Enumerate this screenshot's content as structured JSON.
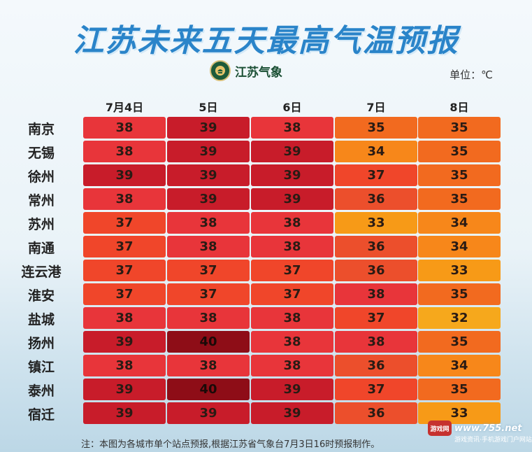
{
  "title": "江苏未来五天最高气温预报",
  "logo": {
    "text": "江苏气象",
    "icon": "weather-bureau-emblem-icon"
  },
  "unit": "单位：℃",
  "days": [
    "7月4日",
    "5日",
    "6日",
    "7日",
    "8日"
  ],
  "cities": [
    {
      "name": "南京",
      "temps": [
        38,
        39,
        38,
        35,
        35
      ]
    },
    {
      "name": "无锡",
      "temps": [
        38,
        39,
        39,
        34,
        35
      ]
    },
    {
      "name": "徐州",
      "temps": [
        39,
        39,
        39,
        37,
        35
      ]
    },
    {
      "name": "常州",
      "temps": [
        38,
        39,
        39,
        36,
        35
      ]
    },
    {
      "name": "苏州",
      "temps": [
        37,
        38,
        38,
        33,
        34
      ]
    },
    {
      "name": "南通",
      "temps": [
        37,
        38,
        38,
        36,
        34
      ]
    },
    {
      "name": "连云港",
      "temps": [
        37,
        37,
        37,
        36,
        33
      ]
    },
    {
      "name": "淮安",
      "temps": [
        37,
        37,
        37,
        38,
        35
      ]
    },
    {
      "name": "盐城",
      "temps": [
        38,
        38,
        38,
        37,
        32
      ]
    },
    {
      "name": "扬州",
      "temps": [
        39,
        40,
        38,
        38,
        35
      ]
    },
    {
      "name": "镇江",
      "temps": [
        38,
        38,
        38,
        36,
        34
      ]
    },
    {
      "name": "泰州",
      "temps": [
        39,
        40,
        39,
        37,
        35
      ]
    },
    {
      "name": "宿迁",
      "temps": [
        39,
        39,
        39,
        36,
        33
      ]
    }
  ],
  "temperature_colors": {
    "32": "#f6a81c",
    "33": "#f79a17",
    "34": "#f7871a",
    "35": "#f26a1f",
    "36": "#ec4f2c",
    "37": "#f0462a",
    "38": "#e8353a",
    "39": "#c81c2a",
    "40": "#8e0d17"
  },
  "footnote": "注：本图为各城市单个站点预报,根据江苏省气象台7月3日16时预报制作。",
  "watermark": {
    "icon_text": "游戏网",
    "text": "www.755.net",
    "sub": "游戏资讯·手机游戏门户网站"
  }
}
